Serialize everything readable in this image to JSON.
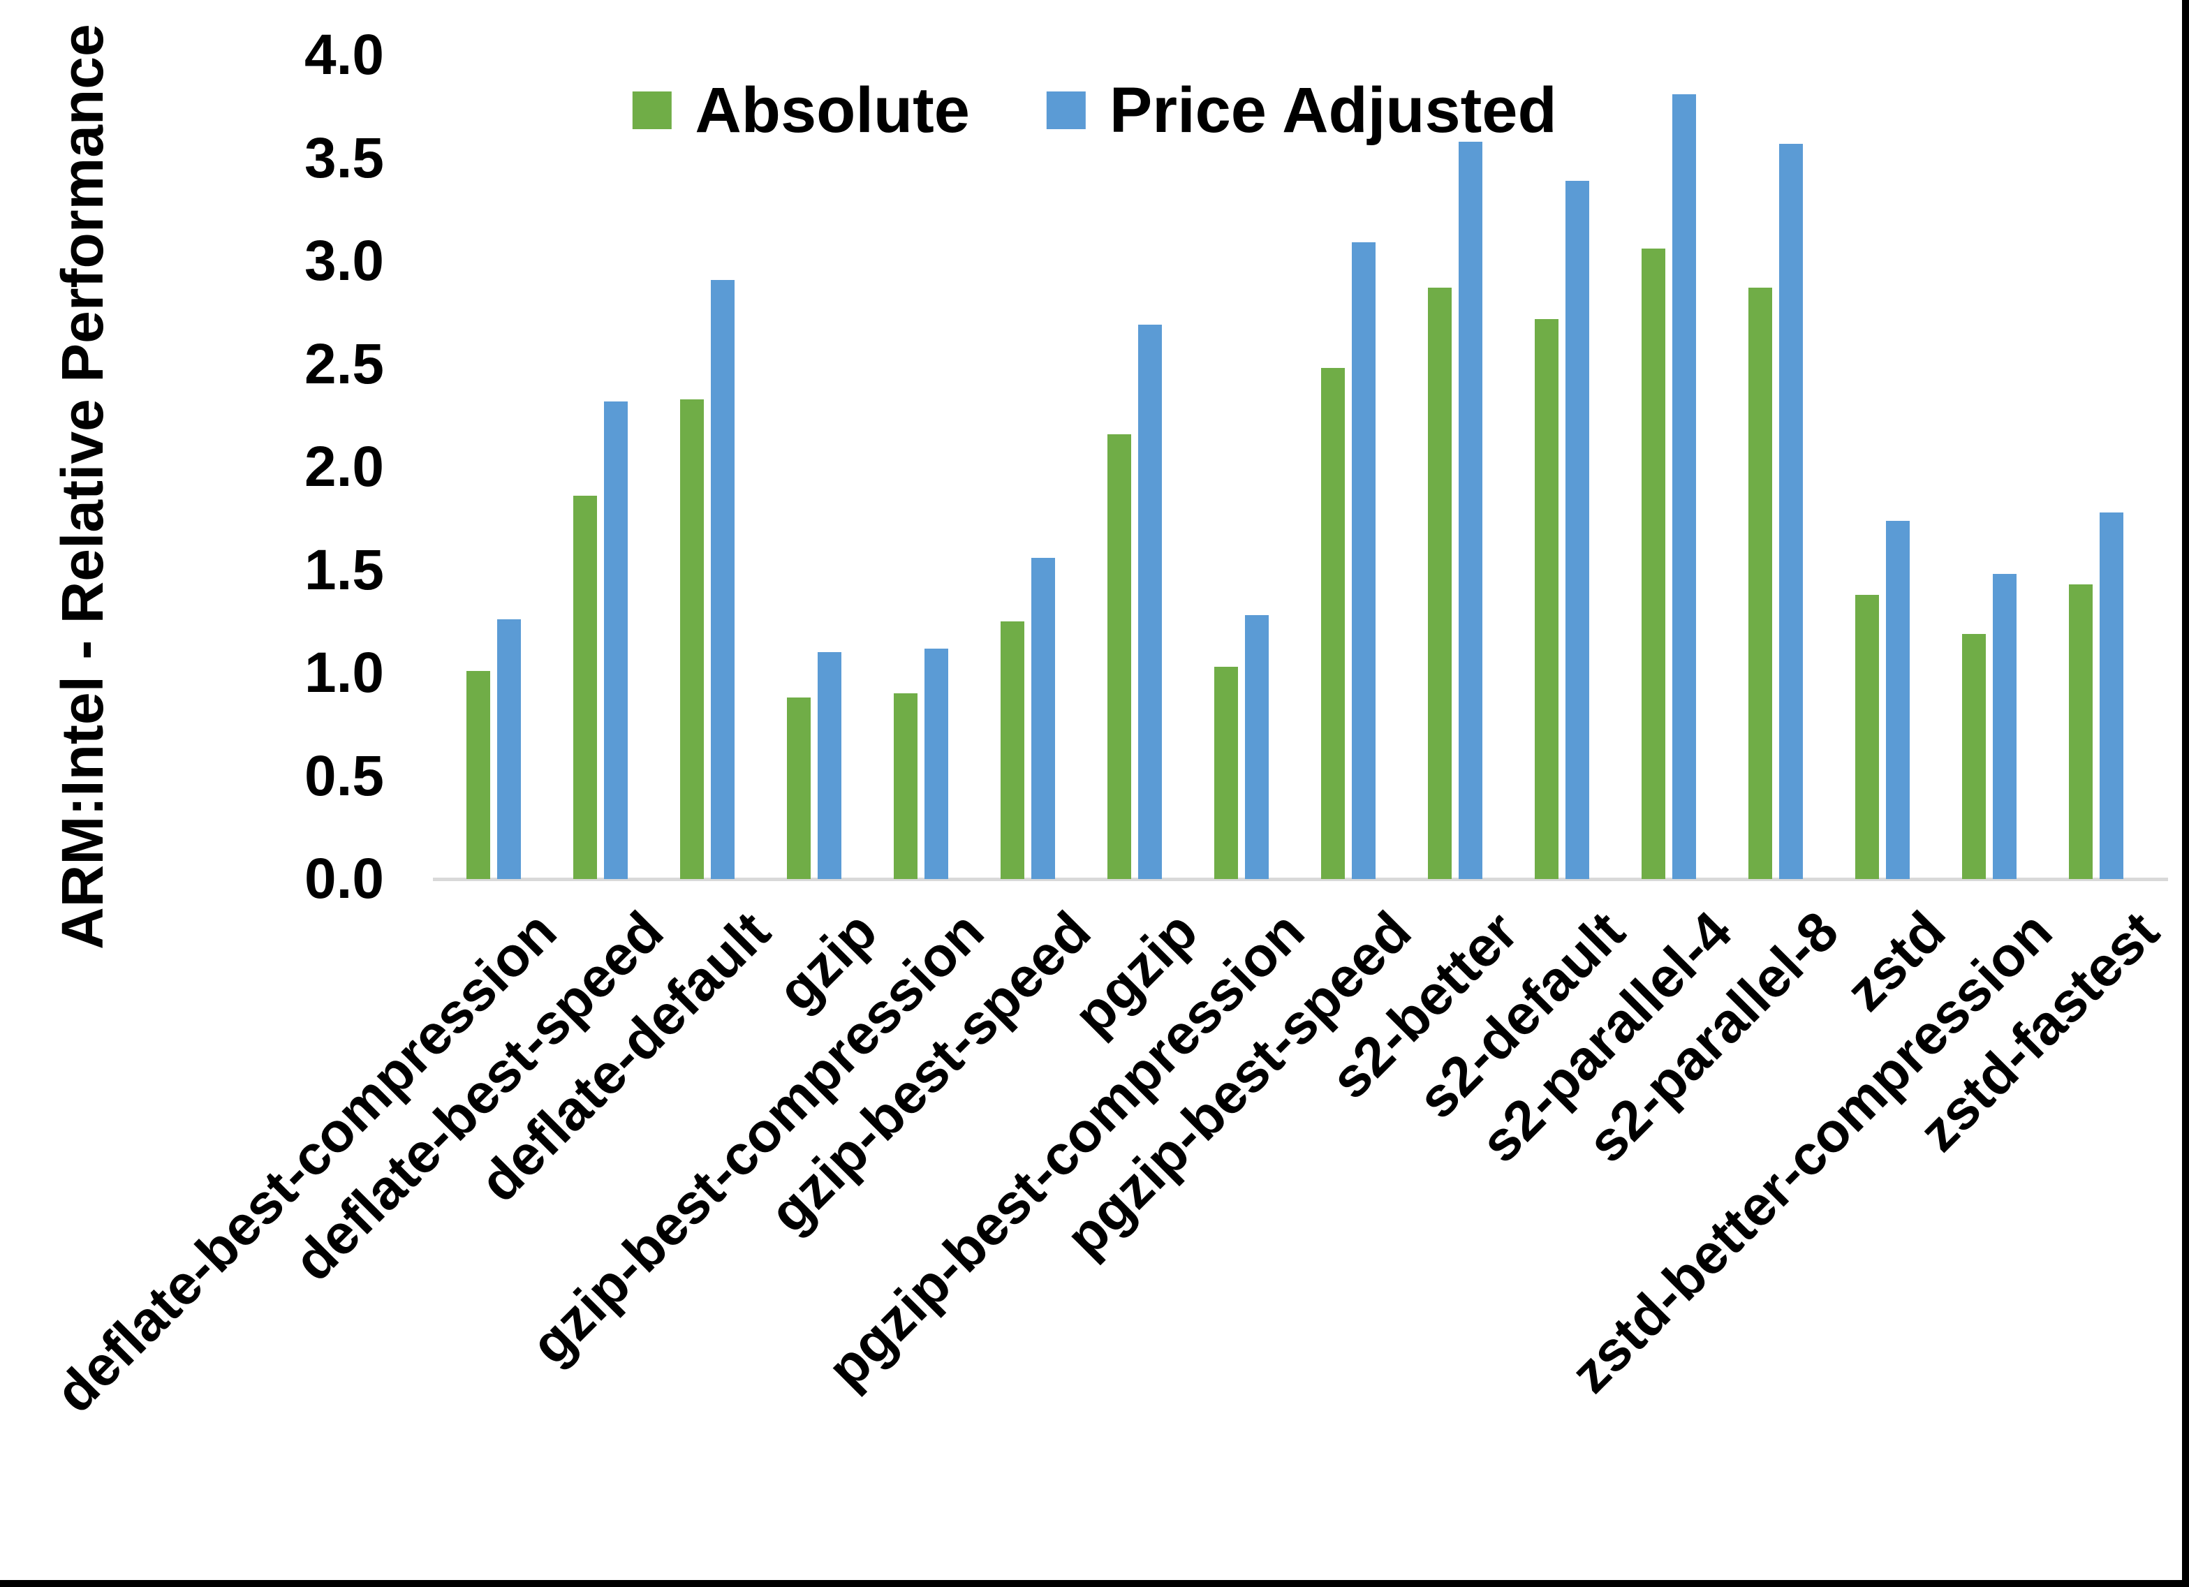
{
  "chart_data": {
    "type": "bar",
    "title": "",
    "xlabel": "",
    "ylabel": "ARM:Intel - Relative Performance",
    "ylim": [
      0.0,
      4.0
    ],
    "ytick_step": 0.5,
    "ytick_labels": [
      "0.0",
      "0.5",
      "1.0",
      "1.5",
      "2.0",
      "2.5",
      "3.0",
      "3.5",
      "4.0"
    ],
    "grid": false,
    "legend_position": "top-center",
    "categories": [
      "deflate-best-compression",
      "deflate-best-speed",
      "deflate-default",
      "gzip",
      "gzip-best-compression",
      "gzip-best-speed",
      "pgzip",
      "pgzip-best-compression",
      "pgzip-best-speed",
      "s2-better",
      "s2-default",
      "s2-parallel-4",
      "s2-parallel-8",
      "zstd",
      "zstd-better-compression",
      "zstd-fastest"
    ],
    "series": [
      {
        "name": "Absolute",
        "color": "#70AD47",
        "values": [
          1.01,
          1.86,
          2.33,
          0.88,
          0.9,
          1.25,
          2.16,
          1.03,
          2.48,
          2.87,
          2.72,
          3.06,
          2.87,
          1.38,
          1.19,
          1.43
        ]
      },
      {
        "name": "Price Adjusted",
        "color": "#5B9BD5",
        "values": [
          1.26,
          2.32,
          2.91,
          1.1,
          1.12,
          1.56,
          2.69,
          1.28,
          3.09,
          3.58,
          3.39,
          3.81,
          3.57,
          1.74,
          1.48,
          1.78
        ]
      }
    ]
  },
  "colors": {
    "axis_line": "#D9D9D9",
    "text": "#000000",
    "background": "#FFFFFF",
    "screenshot_border": "#000000"
  }
}
